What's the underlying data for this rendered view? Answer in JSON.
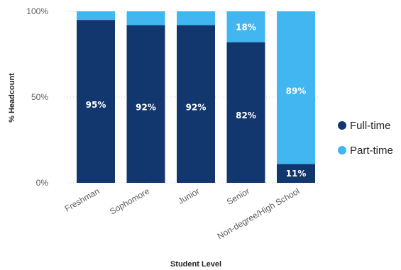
{
  "chart_data": {
    "type": "bar",
    "stacked": true,
    "orientation": "vertical",
    "categories": [
      "Freshman",
      "Sophomore",
      "Junior",
      "Senior",
      "Non-degree/High School"
    ],
    "series": [
      {
        "name": "Full-time",
        "values": [
          95,
          92,
          92,
          82,
          11
        ],
        "color": "#12376e",
        "labels": [
          "95%",
          "92%",
          "92%",
          "82%",
          "11%"
        ]
      },
      {
        "name": "Part-time",
        "values": [
          5,
          8,
          8,
          18,
          89
        ],
        "color": "#41b6f0",
        "labels": [
          "",
          "",
          "",
          "18%",
          "89%"
        ]
      }
    ],
    "xlabel": "Student Level",
    "ylabel": "% Headcount",
    "ylim": [
      0,
      100
    ],
    "yticks": [
      "0%",
      "50%",
      "100%"
    ],
    "grid": true,
    "legend_position": "right"
  }
}
